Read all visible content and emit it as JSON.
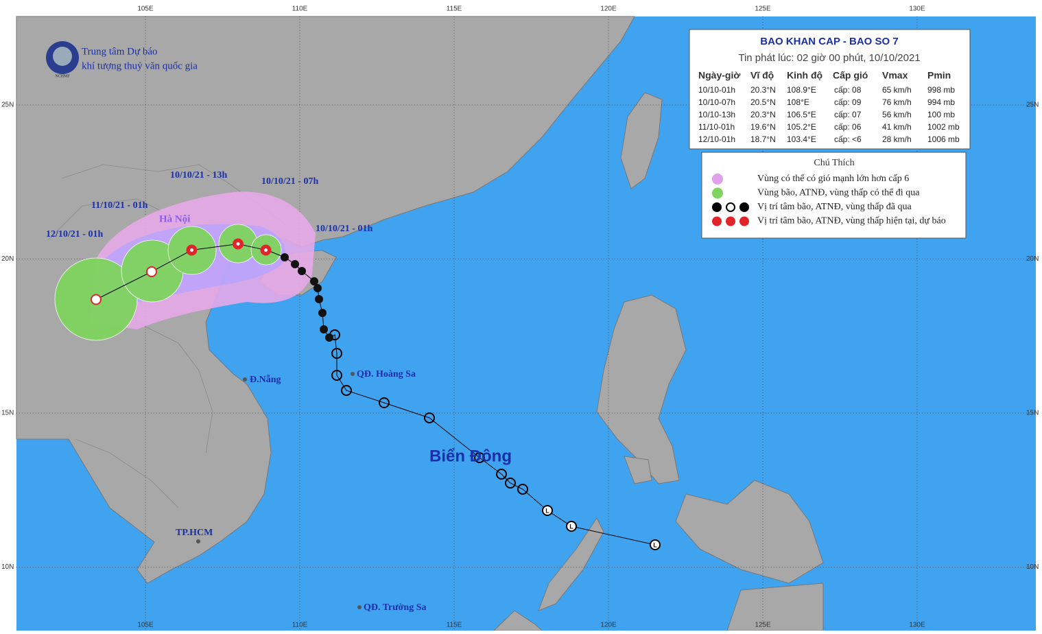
{
  "header": {
    "org_line1": "Trung tâm Dự báo",
    "org_line2": "khí tượng thuỷ văn quốc gia",
    "logo": "NCHMF"
  },
  "grid": {
    "lon_labels": [
      "105E",
      "110E",
      "115E",
      "120E",
      "125E",
      "130E"
    ],
    "lat_labels": [
      "25N",
      "20N",
      "15N",
      "10N"
    ]
  },
  "bulletin": {
    "title": "BAO KHAN CAP - BAO SO 7",
    "issued": "Tin phát lúc: 02 giờ 00 phút, 10/10/2021",
    "columns": [
      "Ngày-giờ",
      "Vĩ độ",
      "Kinh độ",
      "Cấp gió",
      "Vmax",
      "Pmin"
    ],
    "rows": [
      [
        "10/10-01h",
        "20.3°N",
        "108.9°E",
        "cấp: 08",
        "65 km/h",
        "998 mb"
      ],
      [
        "10/10-07h",
        "20.5°N",
        "108°E",
        "cấp: 09",
        "76 km/h",
        "994 mb"
      ],
      [
        "10/10-13h",
        "20.3°N",
        "106.5°E",
        "cấp: 07",
        "56 km/h",
        "100 mb"
      ],
      [
        "11/10-01h",
        "19.6°N",
        "105.2°E",
        "cấp: 06",
        "41 km/h",
        "1002 mb"
      ],
      [
        "12/10-01h",
        "18.7°N",
        "103.4°E",
        "cấp: <6",
        "28 km/h",
        "1006 mb"
      ]
    ]
  },
  "legend": {
    "title": "Chú Thích",
    "items": [
      "Vùng có thể có gió mạnh lớn hơn cấp 6",
      "Vùng bão, ATNĐ, vùng thấp có thể đi qua",
      "Vị trí tâm bão, ATNĐ, vùng thấp đã qua",
      "Vị trí tâm bão, ATNĐ, vùng thấp hiện tại, dự báo"
    ]
  },
  "map_labels": {
    "t1": "10/10/21 - 01h",
    "t2": "10/10/21 - 07h",
    "t3": "10/10/21 - 13h",
    "t4": "11/10/21 - 01h",
    "t5": "12/10/21 - 01h",
    "hanoi": "Hà Nội",
    "danang": "Đ.Nẵng",
    "hoangsa": "QĐ. Hoàng Sa",
    "hcm": "TP.HCM",
    "truongsa": "QĐ. Trường Sa",
    "sea": "Biển Đông"
  }
}
